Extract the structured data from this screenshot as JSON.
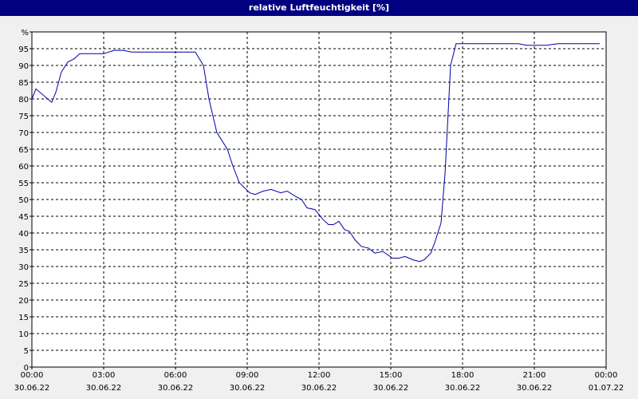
{
  "chart_data": {
    "type": "line",
    "title": "relative Luftfeuchtigkeit [%]",
    "x": [
      0,
      0.17,
      0.83,
      1.0,
      1.23,
      1.5,
      1.77,
      2.0,
      3.0,
      3.43,
      3.83,
      4.17,
      6.83,
      7.17,
      7.4,
      7.73,
      8.17,
      8.4,
      8.67,
      9.1,
      9.33,
      9.67,
      10.0,
      10.4,
      10.67,
      11.0,
      11.27,
      11.5,
      11.83,
      12.17,
      12.4,
      12.6,
      12.83,
      13.07,
      13.27,
      13.5,
      13.77,
      14.07,
      14.33,
      14.67,
      15.07,
      15.33,
      15.6,
      15.93,
      16.2,
      16.4,
      16.67,
      16.83,
      17.1,
      17.27,
      17.5,
      17.73,
      20.33,
      20.67,
      21.5,
      22.0,
      23.73
    ],
    "series": [
      {
        "color": "#0000aa",
        "values": [
          80,
          83,
          79,
          82,
          88,
          91,
          92,
          93.5,
          93.5,
          94.5,
          94.5,
          94,
          94,
          90,
          80,
          70,
          65,
          60,
          55,
          52,
          51.5,
          52.5,
          53,
          52,
          52.5,
          51,
          50,
          47.5,
          47,
          44,
          42.5,
          42.5,
          43.5,
          41,
          40.5,
          38,
          36,
          35.5,
          34,
          34.5,
          32.5,
          32.5,
          33,
          32,
          31.5,
          32,
          34,
          37,
          43,
          58,
          90,
          96.5,
          96.5,
          96,
          96,
          96.5,
          96.5
        ]
      }
    ],
    "xlim": [
      0,
      24
    ],
    "xticks": [
      {
        "value": 0,
        "label": "00:00 30.06.22"
      },
      {
        "value": 3,
        "label": "03:00 30.06.22"
      },
      {
        "value": 6,
        "label": "06:00 30.06.22"
      },
      {
        "value": 9,
        "label": "09:00 30.06.22"
      },
      {
        "value": 12,
        "label": "12:00 30.06.22"
      },
      {
        "value": 15,
        "label": "15:00 30.06.22"
      },
      {
        "value": 18,
        "label": "18:00 30.06.22"
      },
      {
        "value": 21,
        "label": "21:00 30.06.22"
      },
      {
        "value": 24,
        "label": "00:00 01.07.22"
      }
    ],
    "ylim": [
      0,
      100
    ],
    "yticks": [
      0,
      5,
      10,
      15,
      20,
      25,
      30,
      35,
      40,
      45,
      50,
      55,
      60,
      65,
      70,
      75,
      80,
      85,
      90,
      95,
      {
        "value": 100,
        "label": "%"
      }
    ],
    "grid": true
  }
}
